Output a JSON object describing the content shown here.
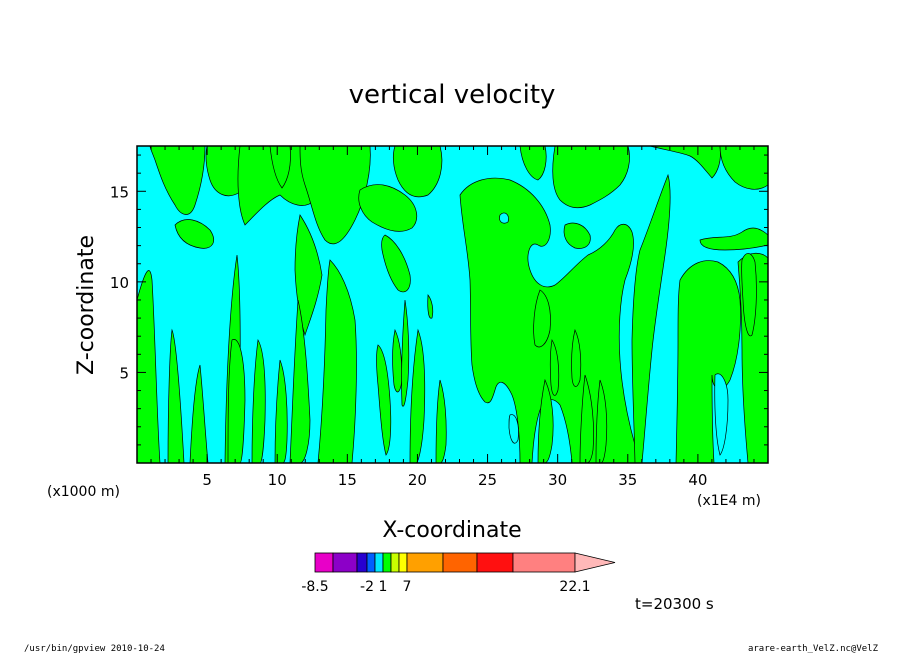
{
  "chart_data": {
    "type": "heatmap",
    "title": "vertical velocity",
    "xlabel": "X-coordinate",
    "ylabel": "Z-coordinate",
    "x_unit": "(x1000 m)",
    "x_scale_note": "(x1E4 m)",
    "xlim": [
      0,
      45
    ],
    "ylim": [
      0,
      17.5
    ],
    "x_ticks": [
      "5",
      "10",
      "15",
      "20",
      "25",
      "30",
      "35",
      "40"
    ],
    "x_tick_values": [
      5,
      10,
      15,
      20,
      25,
      30,
      35,
      40
    ],
    "y_ticks": [
      "5",
      "10",
      "15"
    ],
    "y_tick_values": [
      5,
      10,
      15
    ],
    "colors": {
      "positive": "#00ff00",
      "negative": "#00ffff",
      "contour": "#000000"
    },
    "colorbar": {
      "colors": [
        "#e800c8",
        "#8c00c8",
        "#2800d0",
        "#0060ff",
        "#00e8ff",
        "#00ff00",
        "#c8ff00",
        "#ffff00",
        "#ffa000",
        "#ff6400",
        "#ff1010",
        "#ff8080",
        "#ffb8b8"
      ],
      "labels": [
        "-8.5",
        "-2",
        "1",
        "7",
        "22.1"
      ],
      "label_positions": [
        0,
        3,
        5,
        8,
        12
      ]
    },
    "time_label": "t=20300 s"
  },
  "footer": {
    "left": "/usr/bin/gpview   2010-10-24",
    "right": "arare-earth_VelZ.nc@VelZ"
  }
}
